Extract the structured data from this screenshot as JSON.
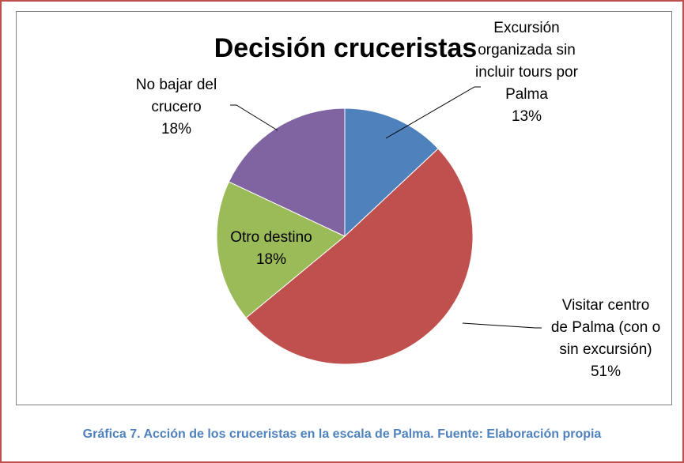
{
  "chart_data": {
    "type": "pie",
    "title": "Decisión cruceristas",
    "slices": [
      {
        "label_lines": [
          "Excursión",
          "organizada sin",
          "incluir tours por",
          "Palma"
        ],
        "value": 13,
        "value_label": "13%",
        "color": "#4f81bd"
      },
      {
        "label_lines": [
          "Visitar centro",
          "de Palma (con o",
          "sin excursión)"
        ],
        "value": 51,
        "value_label": "51%",
        "color": "#c0504d"
      },
      {
        "label_lines": [
          "Otro destino"
        ],
        "value": 18,
        "value_label": "18%",
        "color": "#9bbb59"
      },
      {
        "label_lines": [
          "No bajar del",
          "crucero"
        ],
        "value": 18,
        "value_label": "18%",
        "color": "#8064a2"
      }
    ]
  },
  "caption": {
    "text": "Gráfica 7. Acción de los cruceristas en la escala de Palma. Fuente: Elaboración propia",
    "color": "#4f81bd"
  },
  "frame_color": "#c0504d"
}
